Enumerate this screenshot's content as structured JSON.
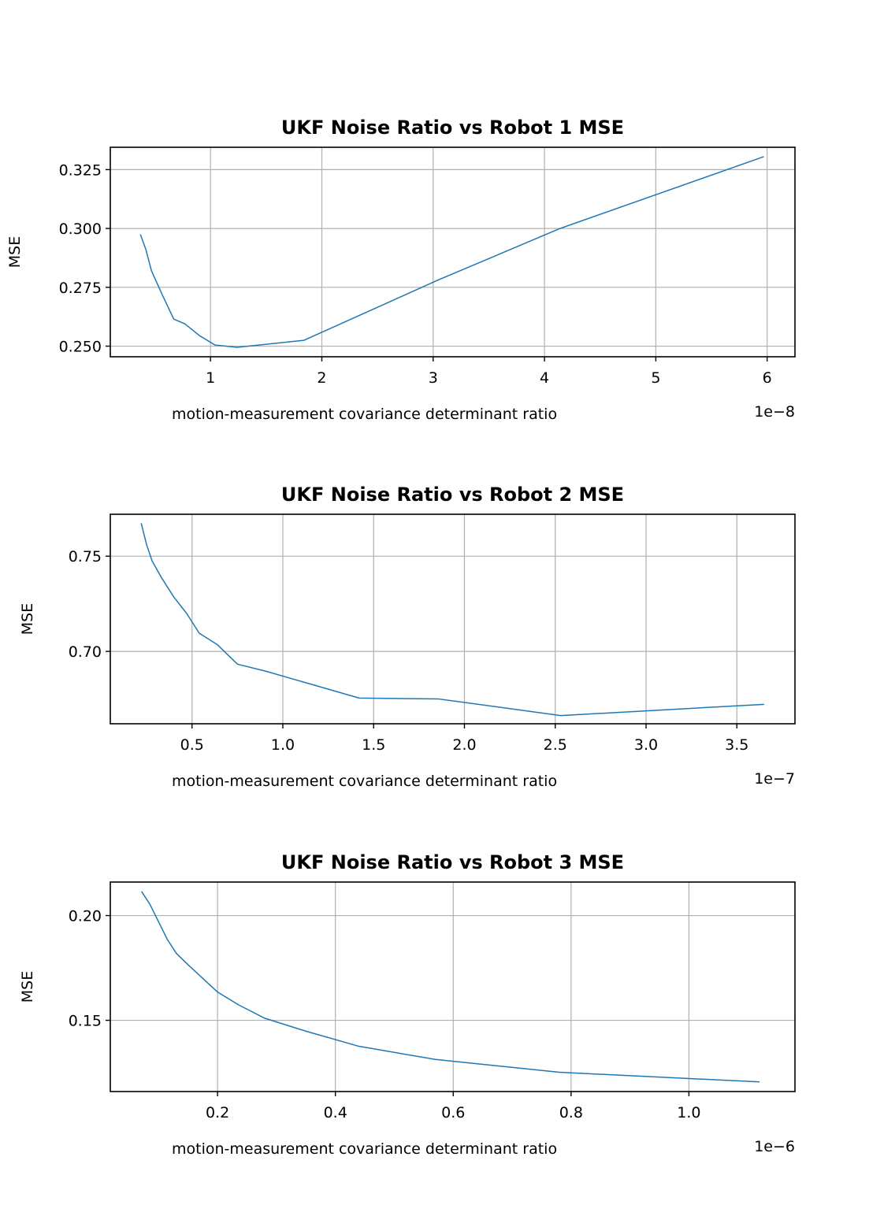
{
  "chart_data": [
    {
      "type": "line",
      "title": "UKF Noise Ratio vs Robot 1 MSE",
      "xlabel": "motion-measurement covariance determinant ratio",
      "ylabel": "MSE",
      "x_offset_text": "1e−8",
      "x_scale": 1e-08,
      "xlim": [
        0.1,
        6.25
      ],
      "ylim": [
        0.2455,
        0.3345
      ],
      "xticks": [
        1,
        2,
        3,
        4,
        5,
        6
      ],
      "xtick_labels": [
        "1",
        "2",
        "3",
        "4",
        "5",
        "6"
      ],
      "yticks": [
        0.25,
        0.275,
        0.3,
        0.325
      ],
      "ytick_labels": [
        "0.250",
        "0.275",
        "0.300",
        "0.325"
      ],
      "grid": true,
      "color": "#1f77b4",
      "x": [
        0.37,
        0.42,
        0.47,
        0.57,
        0.67,
        0.77,
        0.9,
        1.04,
        1.24,
        1.84,
        3.04,
        4.14,
        5.97
      ],
      "y": [
        0.2975,
        0.291,
        0.282,
        0.2715,
        0.2615,
        0.2595,
        0.2545,
        0.2505,
        0.2495,
        0.2525,
        0.278,
        0.3,
        0.3305
      ]
    },
    {
      "type": "line",
      "title": "UKF Noise Ratio vs Robot 2 MSE",
      "xlabel": "motion-measurement covariance determinant ratio",
      "ylabel": "MSE",
      "x_offset_text": "1e−7",
      "x_scale": 1e-07,
      "xlim": [
        0.05,
        3.82
      ],
      "ylim": [
        0.662,
        0.772
      ],
      "xticks": [
        0.5,
        1.0,
        1.5,
        2.0,
        2.5,
        3.0,
        3.5
      ],
      "xtick_labels": [
        "0.5",
        "1.0",
        "1.5",
        "2.0",
        "2.5",
        "3.0",
        "3.5"
      ],
      "yticks": [
        0.7,
        0.75
      ],
      "ytick_labels": [
        "0.70",
        "0.75"
      ],
      "grid": true,
      "color": "#1f77b4",
      "x": [
        0.22,
        0.25,
        0.28,
        0.33,
        0.4,
        0.47,
        0.54,
        0.64,
        0.75,
        0.91,
        1.42,
        1.86,
        2.53,
        3.65
      ],
      "y": [
        0.7673,
        0.756,
        0.7475,
        0.739,
        0.7285,
        0.72,
        0.7095,
        0.7035,
        0.6933,
        0.6895,
        0.6755,
        0.675,
        0.6663,
        0.6722
      ]
    },
    {
      "type": "line",
      "title": "UKF Noise Ratio vs Robot 3 MSE",
      "xlabel": "motion-measurement covariance determinant ratio",
      "ylabel": "MSE",
      "x_offset_text": "1e−6",
      "x_scale": 1e-06,
      "xlim": [
        0.018,
        1.18
      ],
      "ylim": [
        0.116,
        0.216
      ],
      "xticks": [
        0.2,
        0.4,
        0.6,
        0.8,
        1.0
      ],
      "xtick_labels": [
        "0.2",
        "0.4",
        "0.6",
        "0.8",
        "1.0"
      ],
      "yticks": [
        0.15,
        0.2
      ],
      "ytick_labels": [
        "0.15",
        "0.20"
      ],
      "grid": true,
      "color": "#1f77b4",
      "x": [
        0.071,
        0.085,
        0.1,
        0.115,
        0.13,
        0.15,
        0.2,
        0.235,
        0.28,
        0.35,
        0.44,
        0.57,
        0.78,
        1.12
      ],
      "y": [
        0.2115,
        0.2055,
        0.197,
        0.1885,
        0.182,
        0.1765,
        0.1635,
        0.1575,
        0.151,
        0.1448,
        0.1376,
        0.1313,
        0.1252,
        0.1206
      ]
    }
  ]
}
